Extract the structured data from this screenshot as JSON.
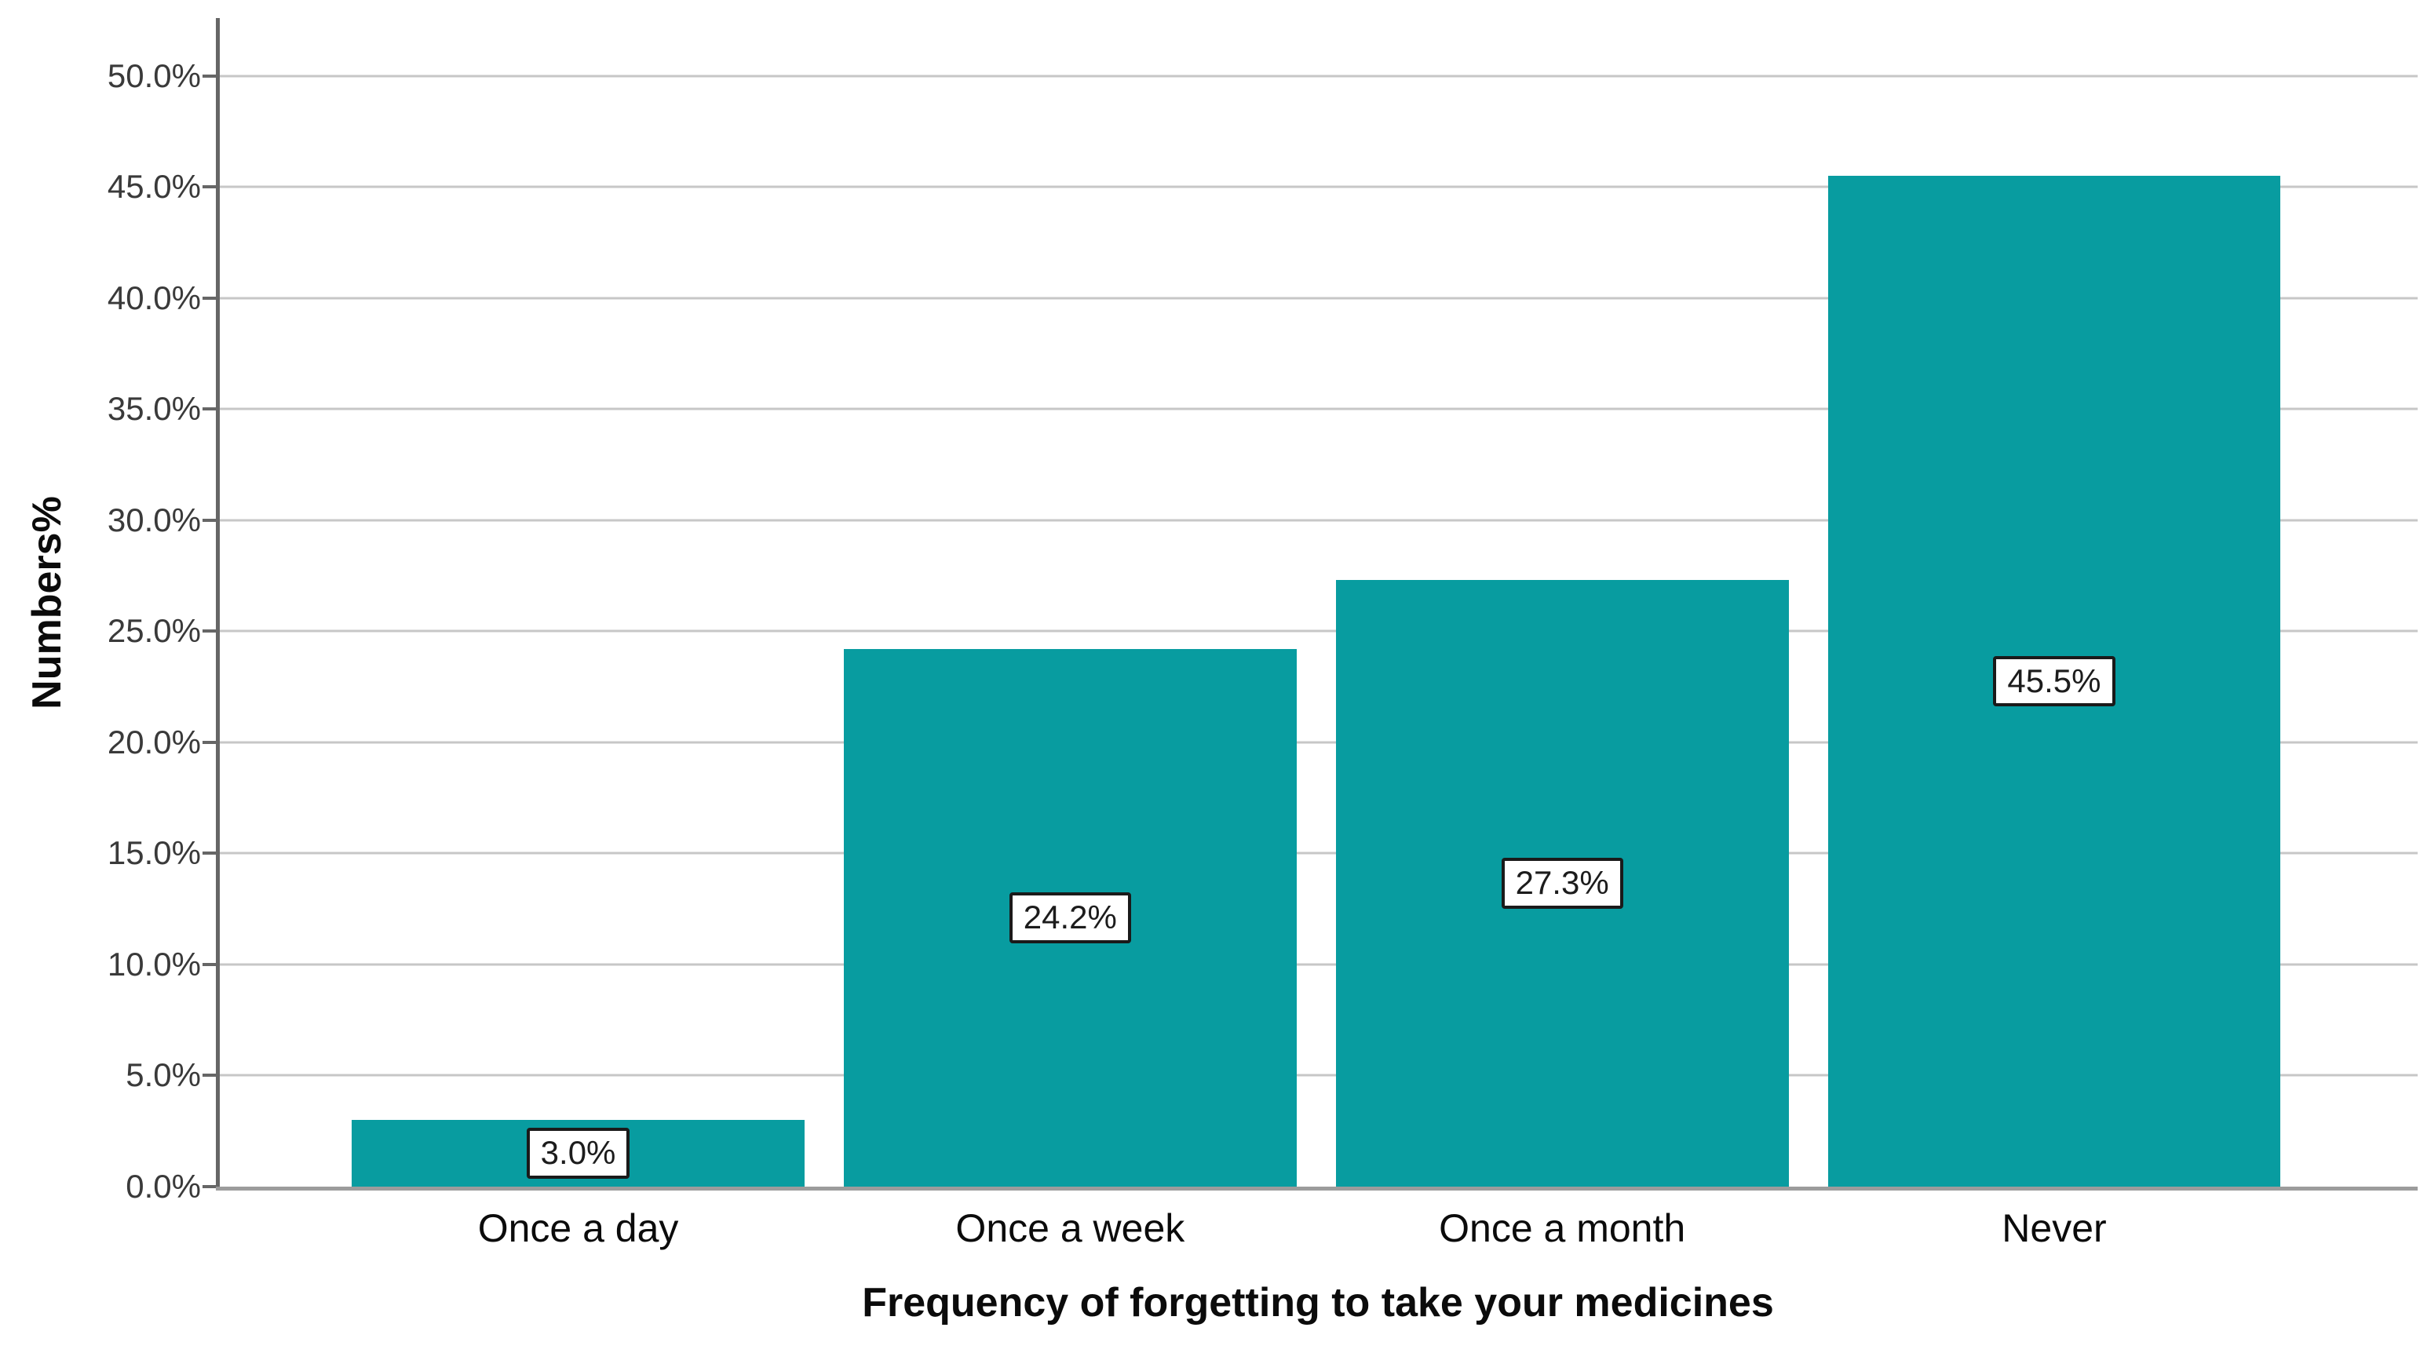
{
  "chart_data": {
    "type": "bar",
    "title": "",
    "categories": [
      "Once a day",
      "Once a week",
      "Once a month",
      "Never"
    ],
    "values": [
      3.0,
      24.2,
      27.3,
      45.5
    ],
    "bar_labels": [
      "3.0%",
      "24.2%",
      "27.3%",
      "45.5%"
    ],
    "xlabel": "Frequency of forgetting to take your medicines",
    "ylabel": "Numbers%",
    "ylim": [
      0,
      50
    ],
    "ytick_step": 5,
    "ytick_labels": [
      "0.0%",
      "5.0%",
      "10.0%",
      "15.0%",
      "20.0%",
      "25.0%",
      "30.0%",
      "35.0%",
      "40.0%",
      "45.0%",
      "50.0%"
    ],
    "axis_top_value": 52.6,
    "grid": true,
    "legend": "none",
    "colors": {
      "bar": "#089CA0",
      "gridline": "#C7C7C7",
      "x_axis": "#9C9C9C",
      "y_axis": "#666666",
      "tick_label": "#3A3A3A",
      "text": "#0B0B0B",
      "label_box_bg": "#FFFFFF",
      "label_box_border": "#1A1A1A"
    }
  }
}
